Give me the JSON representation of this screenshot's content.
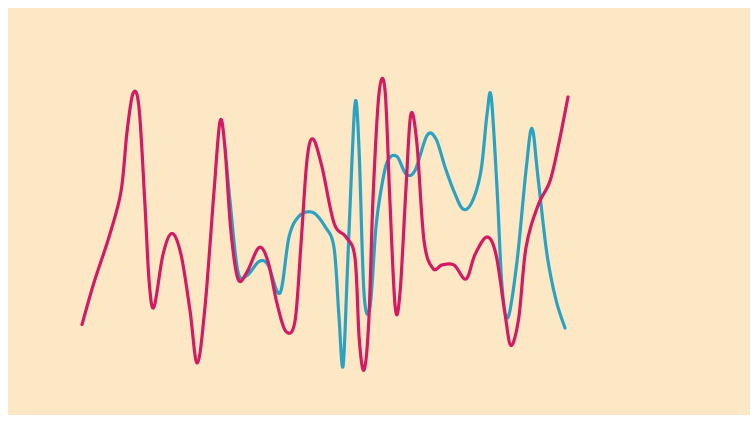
{
  "chart_data": {
    "type": "line",
    "title": "",
    "xlabel": "",
    "ylabel": "",
    "xlim": [
      0,
      10
    ],
    "ylim": [
      0,
      10
    ],
    "grid": false,
    "legend": "none",
    "background": "#fde8c6",
    "series": [
      {
        "color": "#d21b63",
        "points": [
          [
            0.0,
            2.1
          ],
          [
            0.2,
            3.3
          ],
          [
            0.45,
            4.6
          ],
          [
            0.65,
            5.9
          ],
          [
            0.75,
            7.6
          ],
          [
            0.85,
            8.7
          ],
          [
            0.95,
            8.3
          ],
          [
            1.05,
            5.5
          ],
          [
            1.12,
            3.3
          ],
          [
            1.2,
            2.6
          ],
          [
            1.35,
            4.1
          ],
          [
            1.5,
            4.7
          ],
          [
            1.65,
            4.1
          ],
          [
            1.8,
            2.5
          ],
          [
            1.92,
            1.0
          ],
          [
            2.05,
            2.6
          ],
          [
            2.2,
            5.9
          ],
          [
            2.3,
            7.9
          ],
          [
            2.38,
            7.2
          ],
          [
            2.48,
            4.8
          ],
          [
            2.6,
            3.4
          ],
          [
            2.75,
            3.6
          ],
          [
            2.95,
            4.3
          ],
          [
            3.1,
            3.9
          ],
          [
            3.25,
            2.7
          ],
          [
            3.4,
            1.9
          ],
          [
            3.55,
            2.2
          ],
          [
            3.65,
            4.4
          ],
          [
            3.75,
            6.8
          ],
          [
            3.85,
            7.4
          ],
          [
            4.0,
            6.6
          ],
          [
            4.2,
            5.0
          ],
          [
            4.4,
            4.6
          ],
          [
            4.55,
            4.0
          ],
          [
            4.62,
            1.7
          ],
          [
            4.7,
            0.8
          ],
          [
            4.78,
            2.2
          ],
          [
            4.85,
            5.7
          ],
          [
            4.95,
            8.7
          ],
          [
            5.05,
            8.8
          ],
          [
            5.13,
            5.7
          ],
          [
            5.22,
            2.6
          ],
          [
            5.3,
            3.0
          ],
          [
            5.4,
            6.0
          ],
          [
            5.48,
            8.1
          ],
          [
            5.58,
            7.3
          ],
          [
            5.7,
            4.5
          ],
          [
            5.85,
            3.7
          ],
          [
            6.0,
            3.8
          ],
          [
            6.2,
            3.8
          ],
          [
            6.4,
            3.4
          ],
          [
            6.55,
            4.1
          ],
          [
            6.75,
            4.6
          ],
          [
            6.9,
            4.1
          ],
          [
            7.05,
            2.4
          ],
          [
            7.15,
            1.5
          ],
          [
            7.28,
            2.3
          ],
          [
            7.4,
            4.3
          ],
          [
            7.6,
            5.5
          ],
          [
            7.8,
            6.2
          ],
          [
            7.95,
            7.3
          ],
          [
            8.1,
            8.6
          ]
        ]
      },
      {
        "color": "#2ba2c2",
        "points": [
          [
            2.38,
            7.2
          ],
          [
            2.48,
            5.4
          ],
          [
            2.6,
            3.6
          ],
          [
            2.75,
            3.5
          ],
          [
            2.95,
            3.9
          ],
          [
            3.1,
            3.8
          ],
          [
            3.3,
            3.0
          ],
          [
            3.45,
            4.6
          ],
          [
            3.62,
            5.2
          ],
          [
            3.85,
            5.3
          ],
          [
            4.05,
            4.9
          ],
          [
            4.2,
            4.3
          ],
          [
            4.28,
            2.4
          ],
          [
            4.35,
            0.9
          ],
          [
            4.42,
            3.5
          ],
          [
            4.5,
            6.8
          ],
          [
            4.56,
            8.5
          ],
          [
            4.62,
            7.0
          ],
          [
            4.7,
            3.0
          ],
          [
            4.8,
            2.6
          ],
          [
            4.9,
            4.9
          ],
          [
            5.0,
            6.1
          ],
          [
            5.1,
            6.8
          ],
          [
            5.25,
            6.9
          ],
          [
            5.4,
            6.4
          ],
          [
            5.55,
            6.5
          ],
          [
            5.75,
            7.5
          ],
          [
            5.9,
            7.4
          ],
          [
            6.05,
            6.6
          ],
          [
            6.2,
            5.9
          ],
          [
            6.35,
            5.4
          ],
          [
            6.5,
            5.6
          ],
          [
            6.65,
            6.5
          ],
          [
            6.75,
            8.1
          ],
          [
            6.82,
            8.6
          ],
          [
            6.92,
            5.9
          ],
          [
            7.0,
            3.2
          ],
          [
            7.1,
            2.3
          ],
          [
            7.25,
            3.9
          ],
          [
            7.4,
            6.5
          ],
          [
            7.5,
            7.7
          ],
          [
            7.6,
            6.3
          ],
          [
            7.75,
            4.1
          ],
          [
            7.9,
            2.8
          ],
          [
            8.05,
            2.0
          ]
        ]
      }
    ]
  }
}
